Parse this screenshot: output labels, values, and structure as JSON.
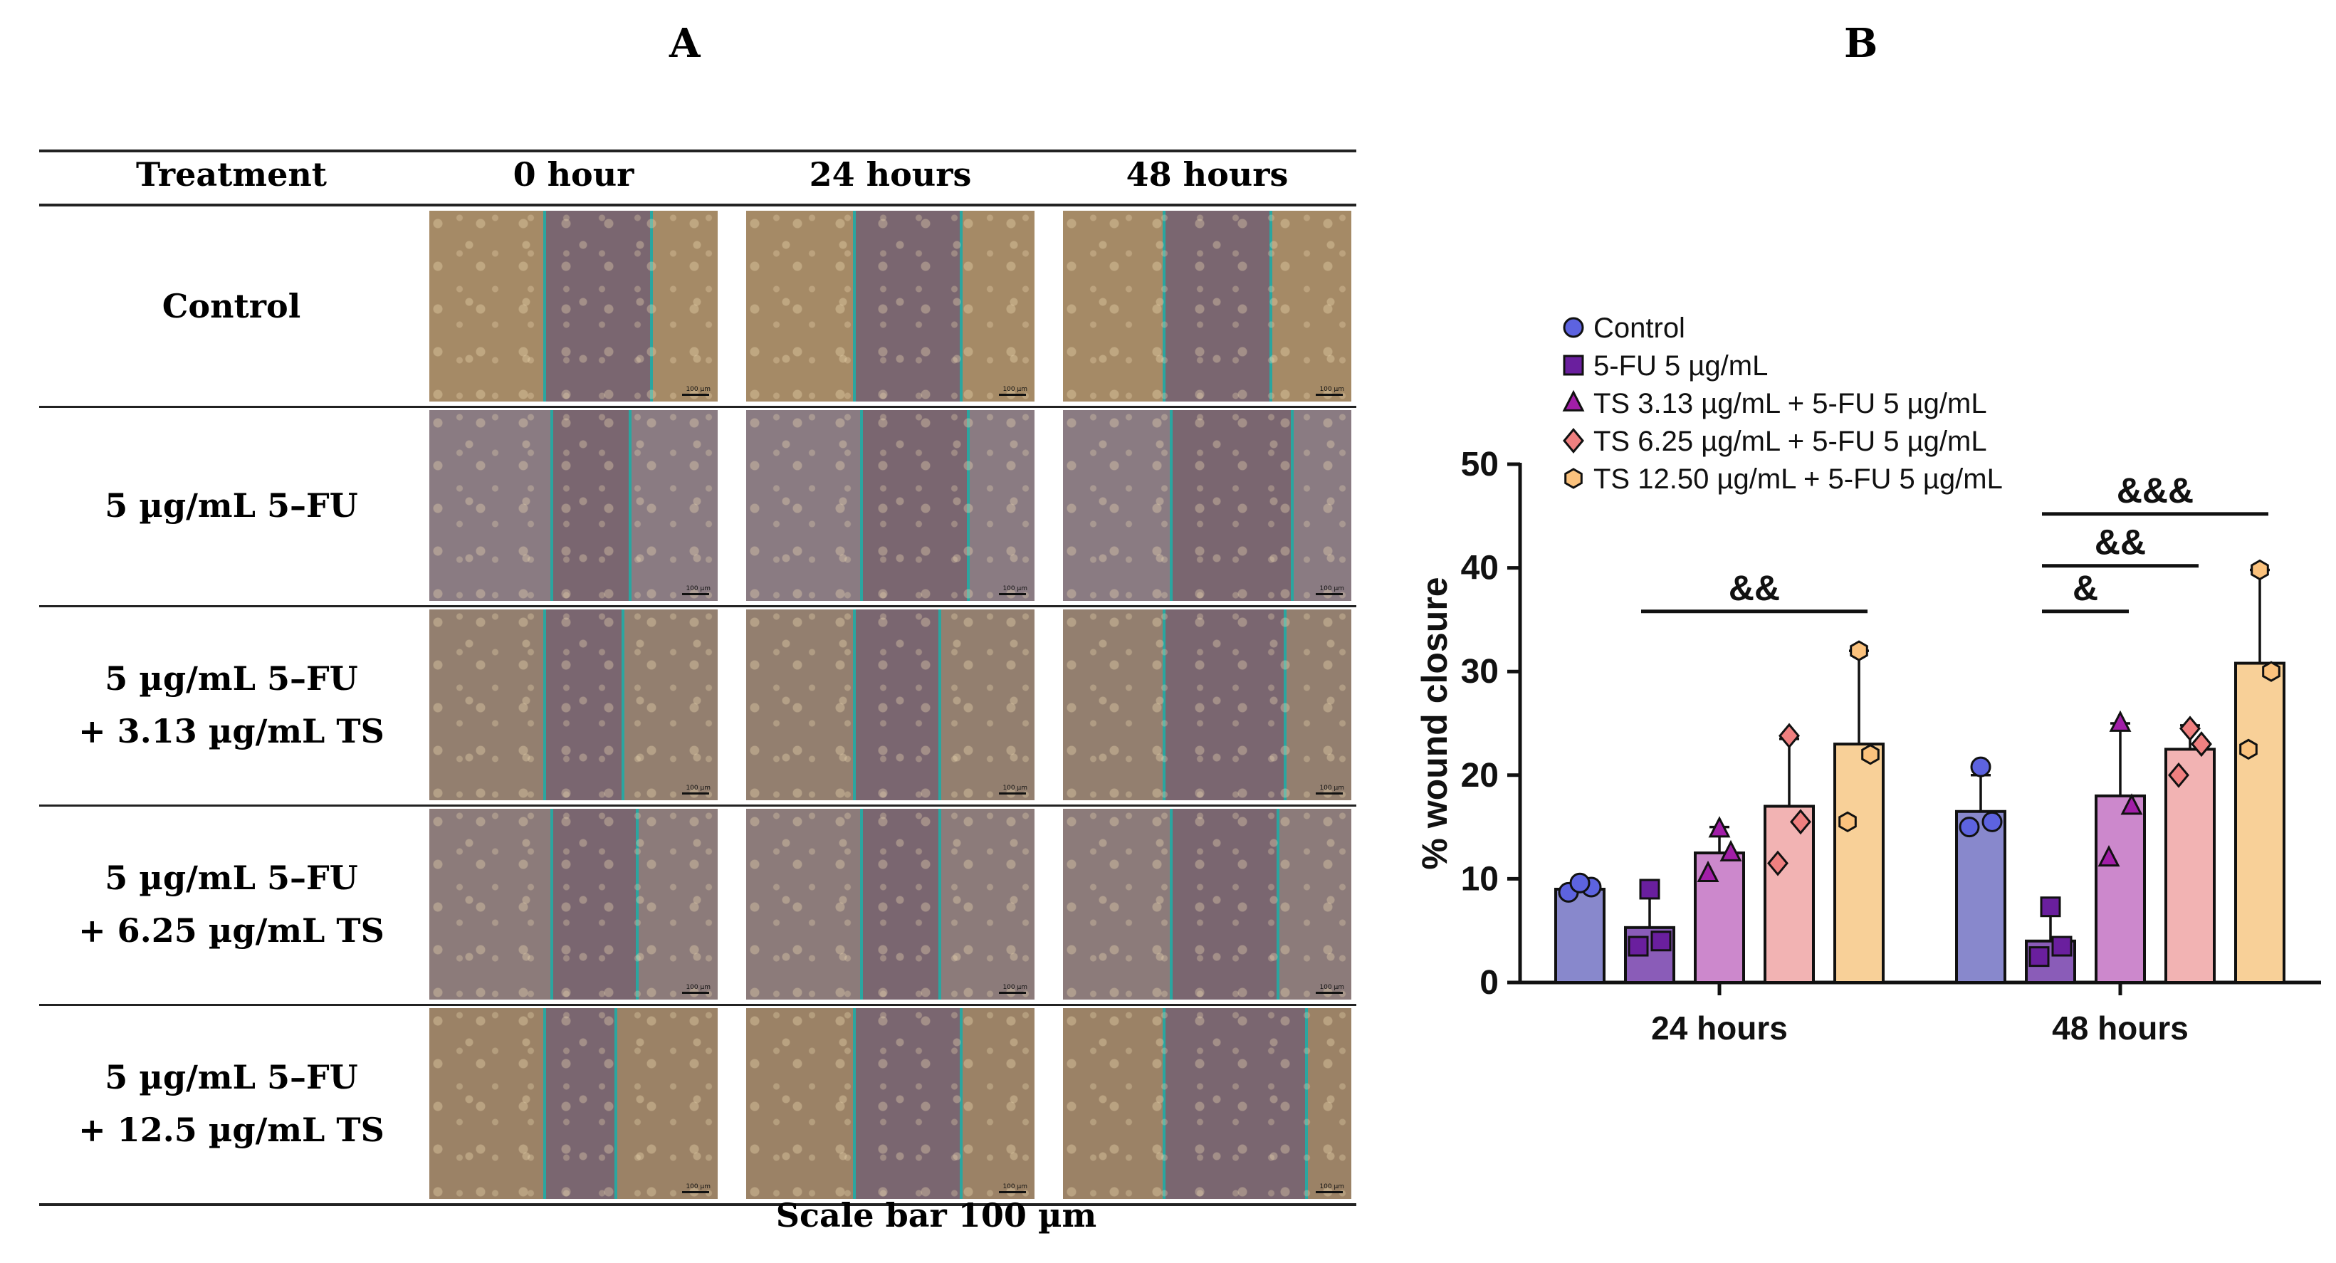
{
  "panel_a": {
    "label": "A",
    "headers": [
      "Treatment",
      "0 hour",
      "24 hours",
      "48 hours"
    ],
    "rows": [
      {
        "label_lines": [
          "Control"
        ],
        "tone": "#a58a66"
      },
      {
        "label_lines": [
          "5 µg/mL 5–FU"
        ],
        "tone": "#8a7b82"
      },
      {
        "label_lines": [
          "5 µg/mL 5–FU",
          "+ 3.13 µg/mL TS"
        ],
        "tone": "#937f6f"
      },
      {
        "label_lines": [
          "5 µg/mL 5–FU",
          "+ 6.25 µg/mL TS"
        ],
        "tone": "#8c7b7a"
      },
      {
        "label_lines": [
          "5 µg/mL 5–FU",
          "+ 12.5 µg/mL TS"
        ],
        "tone": "#9b8266"
      }
    ],
    "image_scale_text": "100 µm",
    "scale_caption": "Scale bar 100 µm"
  },
  "panel_b": {
    "label": "B"
  },
  "chart_data": {
    "type": "bar",
    "categories": [
      "24 hours",
      "48 hours"
    ],
    "ylabel": "% wound closure",
    "ylim": [
      0,
      50
    ],
    "yticks": [
      0,
      10,
      20,
      30,
      40,
      50
    ],
    "legend_placement": "top-left",
    "error_bars": "mean ± SD",
    "series": [
      {
        "name": "Control",
        "color": "#8888cc",
        "marker_color": "#5d63e0",
        "marker": "circle",
        "values": [
          9.0,
          16.5
        ],
        "errors": [
          0.8,
          3.5
        ],
        "points": [
          [
            8.7,
            9.2,
            9.6
          ],
          [
            15.0,
            15.5,
            20.8
          ]
        ]
      },
      {
        "name": "5-FU 5 µg/mL",
        "color": "#8a5cb8",
        "marker_color": "#6a1f9e",
        "marker": "square",
        "values": [
          5.3,
          4.0
        ],
        "errors": [
          3.6,
          3.0
        ],
        "points": [
          [
            3.5,
            4.0,
            9.0
          ],
          [
            2.5,
            3.5,
            7.3
          ]
        ]
      },
      {
        "name": "TS 3.13 µg/mL + 5-FU 5 µg/mL",
        "color": "#cc88cc",
        "marker_color": "#a21ea8",
        "marker": "triangle",
        "values": [
          12.5,
          18.0
        ],
        "errors": [
          2.5,
          7.0
        ],
        "points": [
          [
            10.5,
            12.5,
            14.8
          ],
          [
            12.0,
            17.0,
            25.0
          ]
        ]
      },
      {
        "name": "TS 6.25 µg/mL + 5-FU 5 µg/mL",
        "color": "#f2b3b3",
        "marker_color": "#ef8080",
        "marker": "diamond",
        "values": [
          17.0,
          22.5
        ],
        "errors": [
          6.5,
          2.3
        ],
        "points": [
          [
            11.5,
            15.5,
            23.8
          ],
          [
            20.0,
            23.0,
            24.5
          ]
        ]
      },
      {
        "name": "TS 12.50 µg/mL + 5-FU 5 µg/mL",
        "color": "#f8d098",
        "marker_color": "#fbc27d",
        "marker": "hexagon",
        "values": [
          23.0,
          30.8
        ],
        "errors": [
          9.0,
          9.0
        ],
        "points": [
          [
            15.5,
            22.0,
            32.0
          ],
          [
            22.5,
            30.0,
            39.8
          ]
        ]
      }
    ],
    "significance": [
      {
        "category": "24 hours",
        "from_series": 1,
        "to_series": 4,
        "label": "&&"
      },
      {
        "category": "48 hours",
        "from_series": 1,
        "to_series": 2,
        "label": "&"
      },
      {
        "category": "48 hours",
        "from_series": 1,
        "to_series": 3,
        "label": "&&"
      },
      {
        "category": "48 hours",
        "from_series": 1,
        "to_series": 4,
        "label": "&&&"
      }
    ]
  }
}
